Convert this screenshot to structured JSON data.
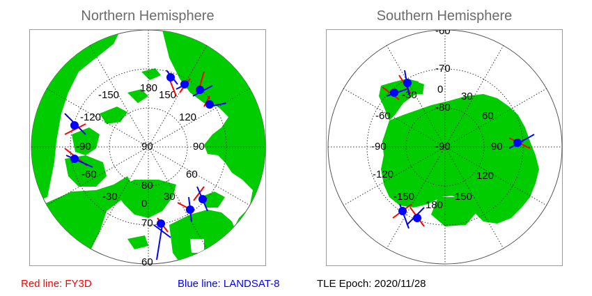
{
  "titles": {
    "north": "Northern Hemisphere",
    "south": "Southern Hemisphere"
  },
  "north": {
    "lon_labels": [
      "180",
      "150",
      "120",
      "90",
      "60",
      "30",
      "0",
      "-30",
      "-60",
      "-90",
      "-120",
      "-150"
    ],
    "lat_labels": [
      "90",
      "80",
      "70",
      "60"
    ]
  },
  "south": {
    "lon_labels": [
      "0",
      "30",
      "60",
      "90",
      "120",
      "150",
      "180",
      "-150",
      "-120",
      "-90",
      "-60",
      "-30"
    ],
    "lat_labels": [
      "-90",
      "-80",
      "-70",
      "-60"
    ]
  },
  "legend": {
    "red": "Red line: FY3D",
    "blue": "Blue line: LANDSAT-8",
    "epoch": "TLE Epoch: 2020/11/28"
  },
  "colors": {
    "land": "#00cc00",
    "ocean": "#ffffff",
    "red_line": "#ff0000",
    "blue_line": "#0000ff",
    "grid": "#333333"
  }
}
